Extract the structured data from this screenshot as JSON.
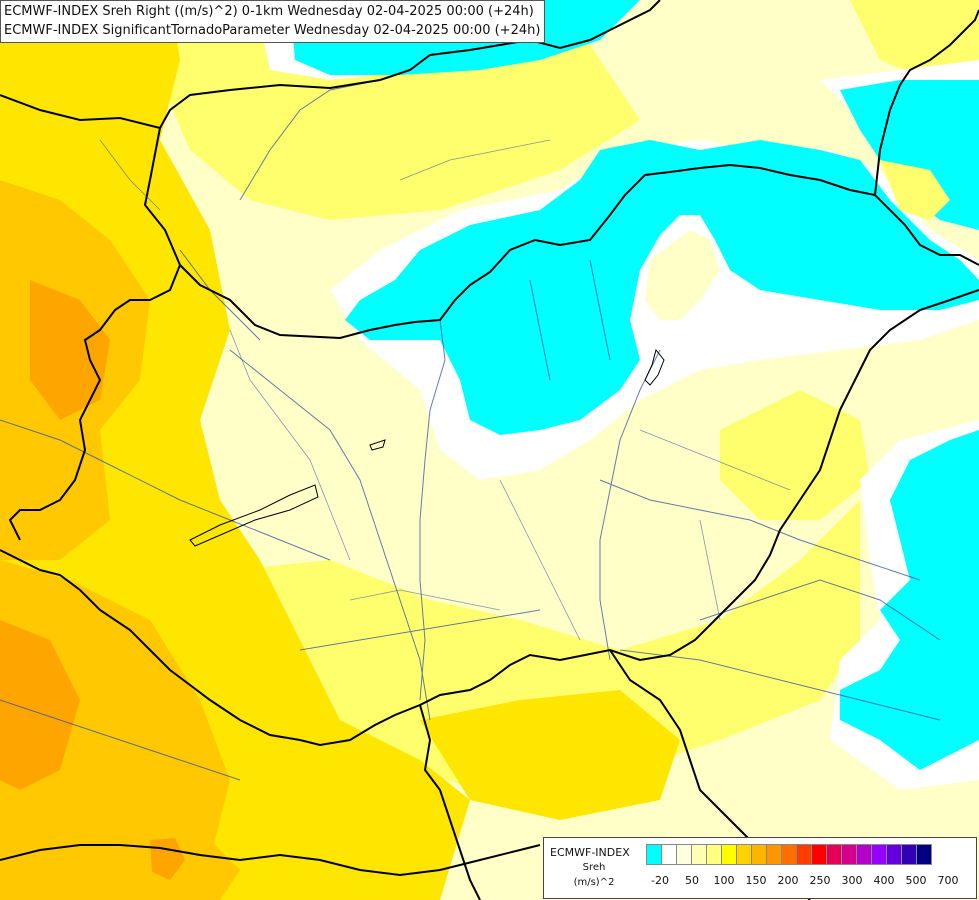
{
  "title": {
    "line1": "ECMWF-INDEX Sreh Right ((m/s)^2) 0-1km Wednesday 02-04-2025 00:00 (+24h)",
    "line2": "ECMWF-INDEX SignificantTornadoParameter Wednesday 02-04-2025 00:00 (+24h)"
  },
  "legend": {
    "model": "ECMWF-INDEX",
    "parameter": "Sreh",
    "unit": "(m/s)^2",
    "colors": [
      "#00ffff",
      "#ffffff",
      "#ffffe0",
      "#ffffb4",
      "#ffff80",
      "#ffff00",
      "#ffd200",
      "#ffb400",
      "#ff9600",
      "#ff6e00",
      "#ff3c00",
      "#ff0000",
      "#e6005a",
      "#d2008c",
      "#b400c8",
      "#9600ff",
      "#6400dc",
      "#3200b4",
      "#000080"
    ],
    "ticks": [
      "-20",
      "50",
      "100",
      "150",
      "200",
      "250",
      "300",
      "400",
      "500",
      "700"
    ]
  },
  "field_colors": {
    "negative": "#00ffff",
    "near_zero": "#ffffff",
    "low": "#ffffc8",
    "moderate": "#ffff6e",
    "high": "#ffe600",
    "very_high": "#ffc800",
    "peak": "#ffa500"
  }
}
